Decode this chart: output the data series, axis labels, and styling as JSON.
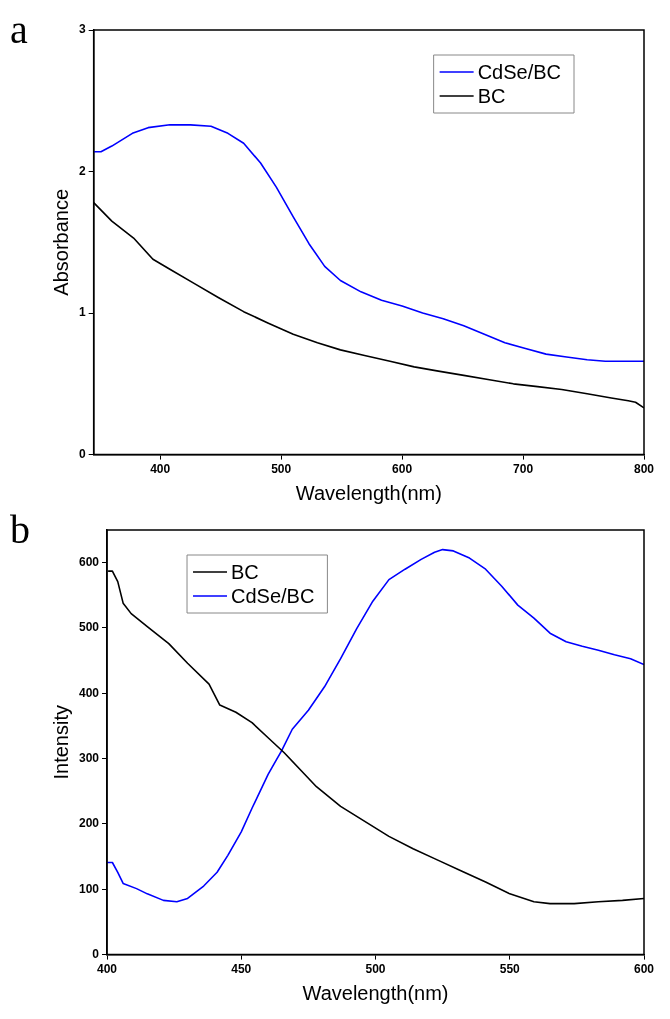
{
  "chart_data": [
    {
      "type": "line",
      "title": "a",
      "xlabel": "Wavelength(nm)",
      "ylabel": "Absorbance",
      "xlim": [
        345,
        800
      ],
      "ylim": [
        0,
        3
      ],
      "xticks": [
        400,
        500,
        600,
        700,
        800
      ],
      "yticks": [
        0,
        1,
        2,
        3
      ],
      "grid": false,
      "legend": "top right",
      "marker": "none",
      "line_style": "solid",
      "series": [
        {
          "name": "CdSe/BC",
          "color": "#0000ff",
          "x": [
            345,
            351,
            360,
            377,
            390,
            408,
            425,
            442,
            456,
            469,
            483,
            496,
            510,
            523,
            536,
            549,
            566,
            583,
            600,
            617,
            634,
            651,
            668,
            685,
            702,
            719,
            736,
            753,
            768,
            800
          ],
          "values": [
            2.14,
            2.14,
            2.18,
            2.27,
            2.31,
            2.33,
            2.33,
            2.32,
            2.27,
            2.2,
            2.06,
            1.89,
            1.68,
            1.49,
            1.33,
            1.23,
            1.15,
            1.09,
            1.05,
            1.0,
            0.96,
            0.91,
            0.85,
            0.79,
            0.75,
            0.71,
            0.69,
            0.67,
            0.66,
            0.66
          ]
        },
        {
          "name": "BC",
          "color": "#000000",
          "x": [
            345,
            360,
            378,
            394,
            408,
            428,
            448,
            469,
            489,
            510,
            530,
            549,
            569,
            590,
            610,
            630,
            651,
            671,
            692,
            712,
            732,
            753,
            773,
            787,
            793,
            800
          ],
          "values": [
            1.78,
            1.65,
            1.53,
            1.38,
            1.31,
            1.21,
            1.11,
            1.01,
            0.93,
            0.85,
            0.79,
            0.74,
            0.7,
            0.66,
            0.62,
            0.59,
            0.56,
            0.53,
            0.5,
            0.48,
            0.46,
            0.43,
            0.4,
            0.38,
            0.37,
            0.33
          ]
        }
      ]
    },
    {
      "type": "line",
      "title": "b",
      "xlabel": "Wavelength(nm)",
      "ylabel": "Intensity",
      "xlim": [
        400,
        600
      ],
      "ylim": [
        0,
        650
      ],
      "xticks": [
        400,
        450,
        500,
        550,
        600
      ],
      "yticks": [
        0,
        100,
        200,
        300,
        400,
        500,
        600
      ],
      "grid": false,
      "legend": "top left",
      "marker": "none",
      "line_style": "solid",
      "series": [
        {
          "name": "BC",
          "color": "#000000",
          "x": [
            400.4,
            402,
            404,
            406,
            409,
            415,
            423,
            430,
            438,
            442,
            448,
            454,
            460,
            466,
            472,
            478,
            487,
            496,
            505,
            514,
            523,
            532,
            541,
            550,
            559,
            565,
            574,
            583,
            592,
            600
          ],
          "values": [
            587,
            587,
            571,
            538,
            522,
            502,
            476,
            446,
            414,
            382,
            371,
            355,
            332,
            309,
            283,
            257,
            227,
            204,
            181,
            162,
            145,
            128,
            111,
            93,
            81,
            78,
            78,
            81,
            83,
            86
          ]
        },
        {
          "name": "CdSe/BC",
          "color": "#0000ff",
          "x": [
            400,
            402,
            404,
            406,
            411,
            415,
            421,
            426,
            430,
            436,
            441,
            445,
            450,
            454,
            460,
            465,
            469,
            475,
            481,
            487,
            493,
            499,
            505,
            511,
            517,
            522,
            525,
            529,
            535,
            541,
            547,
            553,
            559,
            565,
            571,
            577,
            583,
            589,
            595,
            600
          ],
          "values": [
            141,
            141,
            126,
            109,
            101,
            93,
            83,
            81,
            86,
            105,
            126,
            152,
            188,
            224,
            276,
            312,
            345,
            374,
            410,
            453,
            499,
            541,
            574,
            590,
            605,
            616,
            620,
            618,
            607,
            590,
            564,
            535,
            515,
            492,
            479,
            472,
            466,
            459,
            453,
            444
          ]
        }
      ]
    }
  ]
}
